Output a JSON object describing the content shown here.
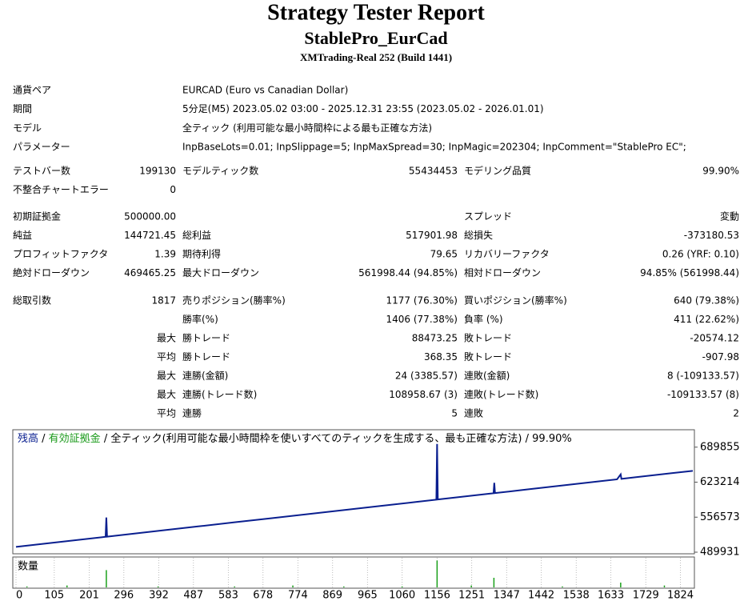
{
  "header": {
    "title": "Strategy Tester Report",
    "subtitle": "StablePro_EurCad",
    "server": "XMTrading-Real 252 (Build 1441)"
  },
  "settings": [
    [
      "通貨ペア",
      "EURCAD (Euro vs Canadian Dollar)"
    ],
    [
      "期間",
      "5分足(M5) 2023.05.02 03:00 - 2025.12.31 23:55 (2023.05.02 - 2026.01.01)"
    ],
    [
      "モデル",
      "全ティック (利用可能な最小時間枠による最も正確な方法)"
    ],
    [
      "パラメーター",
      "InpBaseLots=0.01; InpSlippage=5; InpMaxSpread=30; InpMagic=202304; InpComment=\"StablePro EC\";"
    ]
  ],
  "stats": [
    [
      [
        "テストバー数",
        "199130",
        "モデルティック数",
        "55434453",
        "モデリング品質",
        "99.90%"
      ],
      [
        "不整合チャートエラー",
        "0",
        null,
        null,
        null,
        null
      ]
    ],
    [
      [
        "初期証拠金",
        "500000.00",
        null,
        null,
        "スプレッド",
        "変動"
      ],
      [
        "純益",
        "144721.45",
        "総利益",
        "517901.98",
        "総損失",
        "-373180.53"
      ],
      [
        "プロフィットファクタ",
        "1.39",
        "期待利得",
        "79.65",
        "リカバリーファクタ",
        "0.26 (YRF: 0.10)"
      ],
      [
        "絶対ドローダウン",
        "469465.25",
        "最大ドローダウン",
        "561998.44 (94.85%)",
        "相対ドローダウン",
        "94.85% (561998.44)"
      ]
    ],
    [
      [
        "総取引数",
        "1817",
        "売りポジション(勝率%)",
        "1177 (76.30%)",
        "買いポジション(勝率%)",
        "640 (79.38%)"
      ],
      [
        null,
        null,
        "勝率(%)",
        "1406 (77.38%)",
        "負率 (%)",
        "411 (22.62%)"
      ],
      [
        null,
        "最大",
        "勝トレード",
        "88473.25",
        "敗トレード",
        "-20574.12"
      ],
      [
        null,
        "平均",
        "勝トレード",
        "368.35",
        "敗トレード",
        "-907.98"
      ],
      [
        null,
        "最大",
        "連勝(金額)",
        "24 (3385.57)",
        "連敗(金額)",
        "8 (-109133.57)"
      ],
      [
        null,
        "最大",
        "連勝(トレード数)",
        "108958.67 (3)",
        "連敗(トレード数)",
        "-109133.57 (8)"
      ],
      [
        null,
        "平均",
        "連勝",
        "5",
        "連敗",
        "2"
      ]
    ]
  ],
  "chart_data": {
    "type": "line",
    "legend_separator": " / ",
    "legend_note": "全ティック(利用可能な最小時間枠を使いすべてのティックを生成する、最も正確な方法)",
    "legend_quality": "99.90%",
    "series": [
      {
        "name": "残高",
        "color": "#0a1f8f",
        "x": [
          0,
          100,
          246,
          248,
          250,
          400,
          500,
          600,
          700,
          800,
          900,
          1000,
          1100,
          1154,
          1156,
          1158,
          1300,
          1311,
          1313,
          1315,
          1400,
          1500,
          1600,
          1650,
          1660,
          1662,
          1700,
          1800,
          1858
        ],
        "values": [
          500000,
          507800,
          519200,
          556000,
          519500,
          531200,
          539000,
          546800,
          554500,
          562300,
          570100,
          577900,
          585700,
          589900,
          696000,
          590200,
          601300,
          602100,
          622000,
          602400,
          609100,
          616900,
          624700,
          628600,
          638000,
          629500,
          632500,
          640300,
          644721
        ]
      },
      {
        "name": "有効証拠金",
        "color": "#1a9a1a"
      }
    ],
    "xlim": [
      0,
      1858
    ],
    "xticks": [
      0,
      105,
      201,
      296,
      392,
      487,
      583,
      678,
      774,
      869,
      965,
      1060,
      1156,
      1251,
      1347,
      1442,
      1538,
      1633,
      1729,
      1824
    ],
    "ylim": [
      489931,
      723000
    ],
    "yticks": [
      489931,
      556573,
      623214,
      689855
    ],
    "volume": {
      "name": "数量",
      "color": "#1aa01a",
      "x": [
        30,
        140,
        248,
        390,
        600,
        760,
        900,
        1060,
        1156,
        1250,
        1312,
        1500,
        1660,
        1780
      ],
      "values": [
        1,
        2,
        18,
        1,
        1,
        2,
        1,
        1,
        28,
        2,
        10,
        1,
        5,
        2
      ],
      "ylim": [
        0,
        30
      ]
    }
  }
}
